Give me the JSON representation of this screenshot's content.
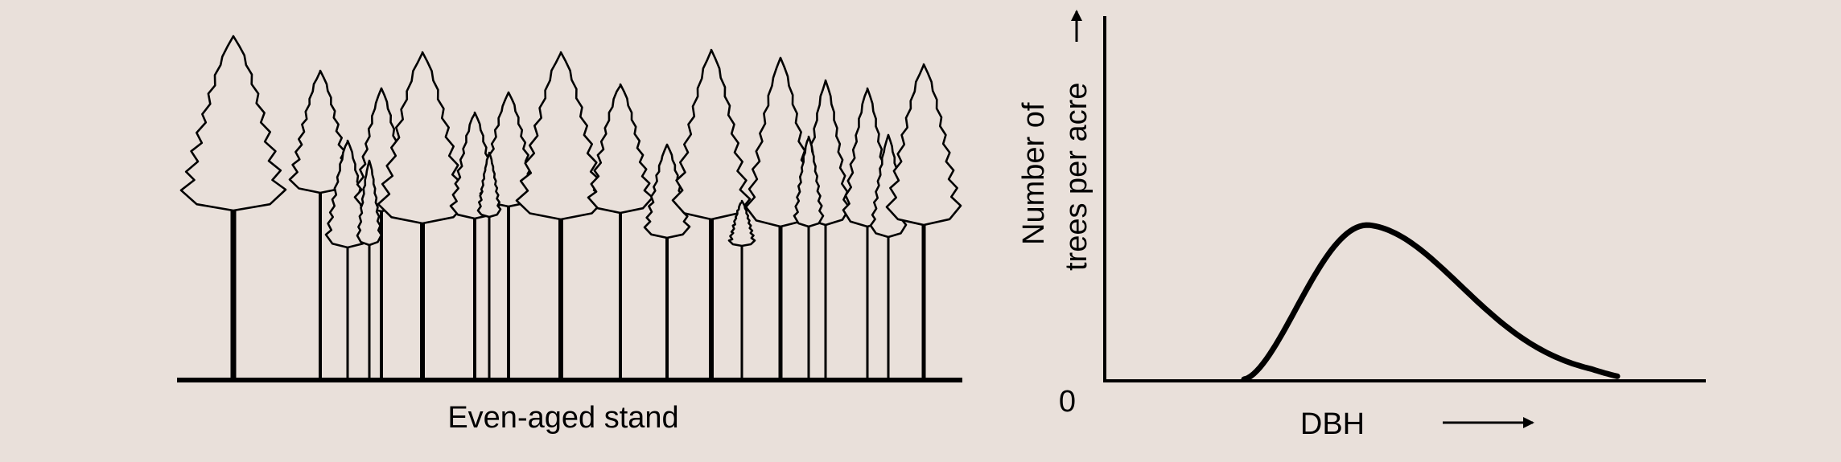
{
  "background_color": "#e9e0da",
  "ink_color": "#000000",
  "stand": {
    "caption": "Even-aged stand",
    "tree_count": 20
  },
  "graph": {
    "y_axis_label_line1": "Number of",
    "y_axis_label_line2": "trees per acre",
    "x_axis_label": "DBH",
    "origin_label": "0",
    "curve_shape": "right-skewed single peak"
  }
}
